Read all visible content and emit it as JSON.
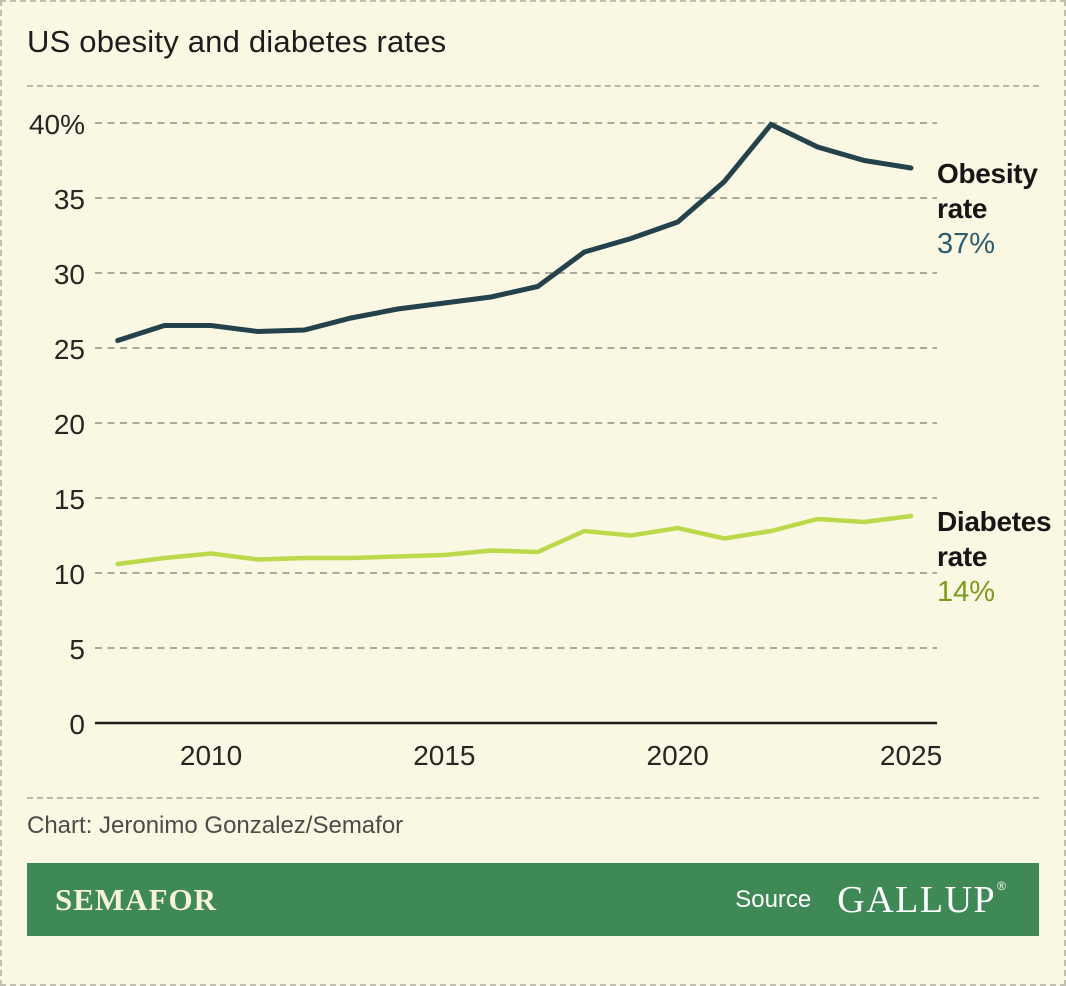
{
  "header": {
    "title": "US obesity and diabetes rates"
  },
  "chart_data": {
    "type": "line",
    "title": "US obesity and diabetes rates",
    "xlabel": "",
    "ylabel": "",
    "xlim": [
      2008,
      2025
    ],
    "ylim": [
      0,
      40
    ],
    "grid": "horizontal-dashed",
    "legend_position": "right-of-line-end",
    "x": [
      2008,
      2009,
      2010,
      2011,
      2012,
      2013,
      2014,
      2015,
      2016,
      2017,
      2018,
      2019,
      2020,
      2021,
      2022,
      2023,
      2024,
      2025
    ],
    "series": [
      {
        "name": "Obesity rate",
        "label_lines": [
          "Obesity",
          "rate"
        ],
        "end_label": "37%",
        "color": "#24424c",
        "end_label_color": "#2e5c6c",
        "values": [
          25.5,
          26.5,
          26.5,
          26.1,
          26.2,
          27.0,
          27.6,
          28.0,
          28.4,
          29.1,
          31.4,
          32.3,
          33.4,
          36.1,
          39.9,
          38.4,
          37.5,
          37.0
        ]
      },
      {
        "name": "Diabetes rate",
        "label_lines": [
          "Diabetes",
          "rate"
        ],
        "end_label": "14%",
        "color": "#bcd94b",
        "end_label_color": "#7d9b20",
        "values": [
          10.6,
          11.0,
          11.3,
          10.9,
          11.0,
          11.0,
          11.1,
          11.2,
          11.5,
          11.4,
          12.8,
          12.5,
          13.0,
          12.3,
          12.8,
          13.6,
          13.4,
          13.8
        ]
      }
    ],
    "y_ticks": [
      {
        "v": 40,
        "label": "40%"
      },
      {
        "v": 35,
        "label": "35"
      },
      {
        "v": 30,
        "label": "30"
      },
      {
        "v": 25,
        "label": "25"
      },
      {
        "v": 20,
        "label": "20"
      },
      {
        "v": 15,
        "label": "15"
      },
      {
        "v": 10,
        "label": "10"
      },
      {
        "v": 5,
        "label": "5"
      },
      {
        "v": 0,
        "label": "0"
      }
    ],
    "x_ticks": [
      {
        "v": 2010,
        "label": "2010"
      },
      {
        "v": 2015,
        "label": "2015"
      },
      {
        "v": 2020,
        "label": "2020"
      },
      {
        "v": 2025,
        "label": "2025"
      }
    ]
  },
  "footer": {
    "credit": "Chart: Jeronimo Gonzalez/Semafor"
  },
  "brandbar": {
    "brand": "SEMAFOR",
    "source_label": "Source",
    "source_name": "GALLUP",
    "registered_mark": "®",
    "background": "#3f8956"
  },
  "colors": {
    "page_background": "#faf7e2",
    "grid": "#a9a99d",
    "axis": "#1d1d1b"
  }
}
